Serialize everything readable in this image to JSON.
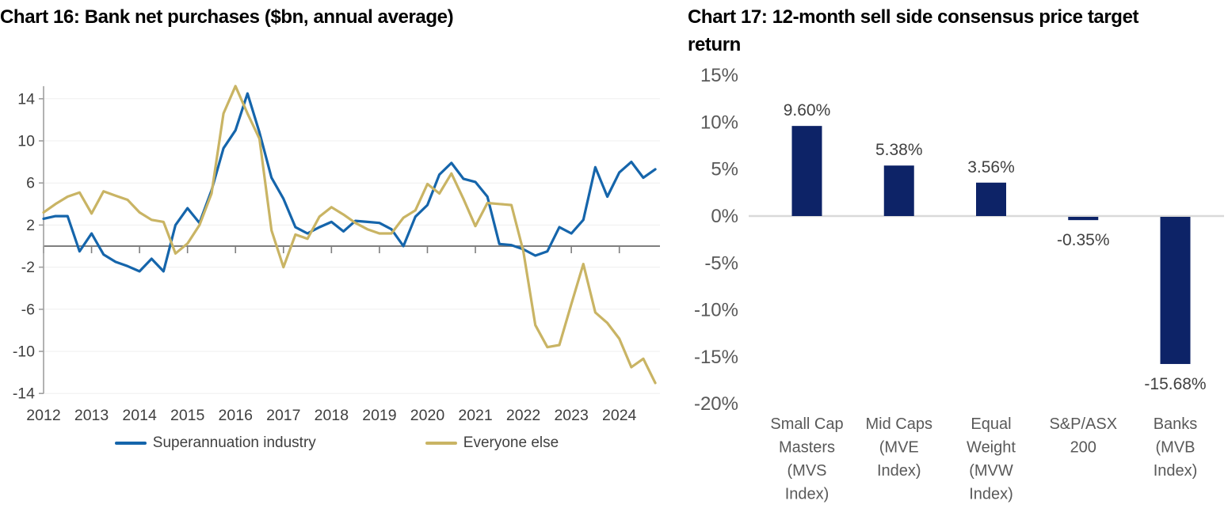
{
  "page": {
    "background": "#ffffff"
  },
  "chart16": {
    "title": "Chart 16: Bank net purchases ($bn, annual average)",
    "chart_data": {
      "type": "line",
      "title": "Bank net purchases ($bn, annual average)",
      "x_unit": "quarterly",
      "x_start_year": 2012,
      "x_tick_labels": [
        "2012",
        "2013",
        "2014",
        "2015",
        "2016",
        "2017",
        "2018",
        "2019",
        "2020",
        "2021",
        "2022",
        "2023",
        "2024"
      ],
      "y_tick_values": [
        14,
        10,
        6,
        2,
        -2,
        -6,
        -10,
        -14
      ],
      "ylim": [
        -14,
        15.5
      ],
      "grid": true,
      "legend_position": "bottom",
      "zero_line_color": "#7f7f7f",
      "gridline_color": "#efefef",
      "axis_color": "#9f9f9f",
      "tick_label_color": "#3f3f3f",
      "series": [
        {
          "name": "Superannuation industry",
          "color": "#1565ab",
          "values": [
            2.6,
            2.85,
            2.85,
            -0.5,
            1.2,
            -0.8,
            -1.5,
            -1.9,
            -2.4,
            -1.2,
            -2.4,
            2.0,
            3.6,
            2.2,
            5.3,
            9.3,
            11.0,
            14.5,
            10.8,
            6.5,
            4.5,
            1.8,
            1.2,
            1.8,
            2.3,
            1.4,
            2.4,
            2.3,
            2.2,
            1.6,
            0.0,
            2.8,
            3.9,
            6.8,
            7.9,
            6.4,
            6.1,
            4.7,
            0.2,
            0.1,
            -0.3,
            -0.9,
            -0.5,
            1.8,
            1.2,
            2.5,
            7.5,
            4.7,
            7.0,
            8.0,
            6.5,
            7.3
          ]
        },
        {
          "name": "Everyone else",
          "color": "#c9b464",
          "values": [
            3.2,
            4.0,
            4.7,
            5.1,
            3.1,
            5.2,
            4.8,
            4.4,
            3.2,
            2.5,
            2.3,
            -0.7,
            0.25,
            2.0,
            5.0,
            12.6,
            15.2,
            12.6,
            10.2,
            1.5,
            -2.0,
            1.1,
            0.7,
            2.8,
            3.7,
            3.0,
            2.2,
            1.6,
            1.2,
            1.2,
            2.7,
            3.4,
            5.9,
            5.0,
            6.9,
            4.5,
            1.9,
            4.1,
            4.0,
            3.9,
            -0.5,
            -7.5,
            -9.6,
            -9.4,
            -5.5,
            -1.7,
            -6.3,
            -7.3,
            -8.8,
            -11.5,
            -10.7,
            -13.0
          ]
        }
      ]
    }
  },
  "chart17": {
    "title": "Chart 17: 12-month sell side consensus price target return",
    "chart_data": {
      "type": "bar",
      "categories": [
        "Small Cap Masters (MVS Index)",
        "Mid Caps (MVE Index)",
        "Equal Weight (MVW Index)",
        "S&P/ASX 200",
        "Banks (MVB Index)"
      ],
      "category_label_lines": [
        [
          "Small Cap",
          "Masters",
          "(MVS",
          "Index)"
        ],
        [
          "Mid Caps",
          "(MVE",
          "Index)"
        ],
        [
          "Equal",
          "Weight",
          "(MVW",
          "Index)"
        ],
        [
          "S&P/ASX",
          "200"
        ],
        [
          "Banks",
          "(MVB",
          "Index)"
        ]
      ],
      "values": [
        9.6,
        5.38,
        3.56,
        -0.35,
        -15.68
      ],
      "value_labels": [
        "9.60%",
        "5.38%",
        "3.56%",
        "-0.35%",
        "-15.68%"
      ],
      "y_tick_labels": [
        "15%",
        "10%",
        "5%",
        "0%",
        "-5%",
        "-10%",
        "-15%",
        "-20%"
      ],
      "y_tick_values": [
        15,
        10,
        5,
        0,
        -5,
        -10,
        -15,
        -20
      ],
      "ylim": [
        -20,
        15
      ],
      "grid": false,
      "bar_color": "#0d2367",
      "zero_line_color": "#d9d9d9",
      "tick_label_color": "#595959",
      "value_label_color": "#404040"
    }
  }
}
